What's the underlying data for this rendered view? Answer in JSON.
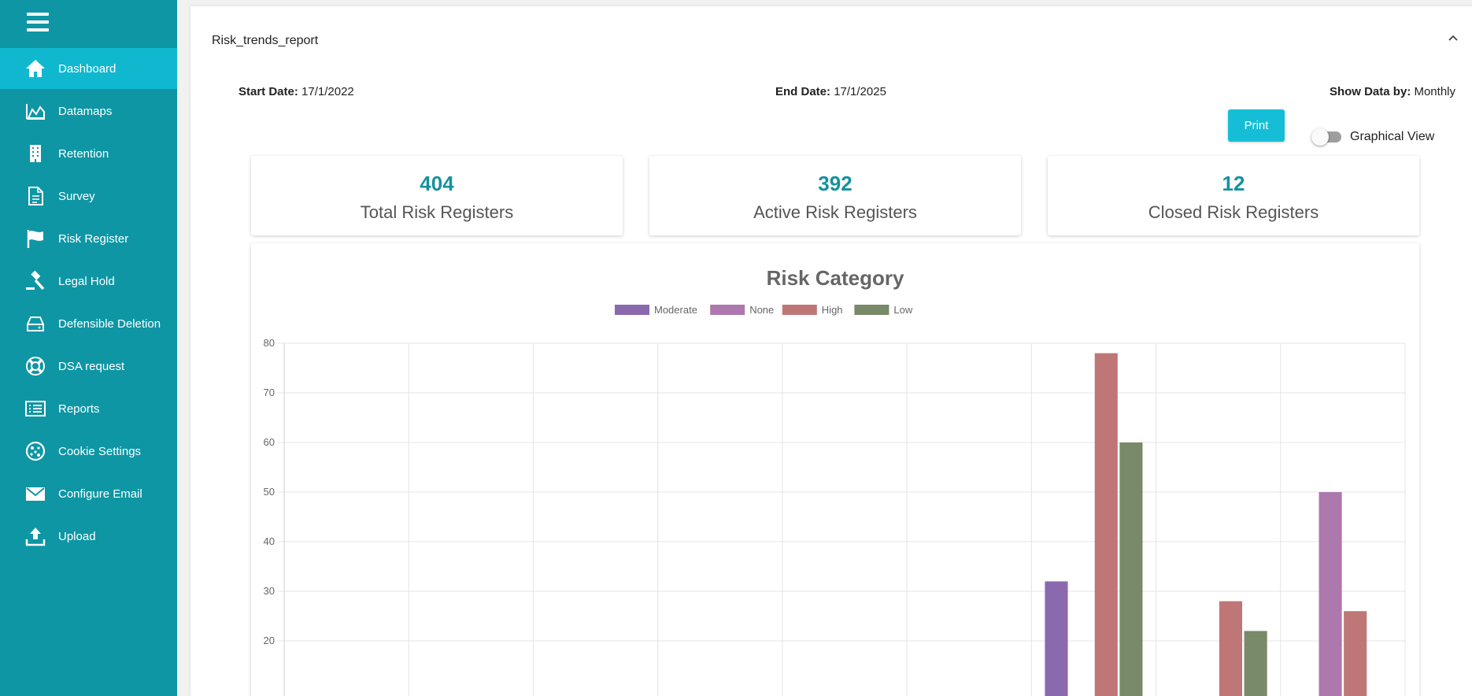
{
  "sidebar": {
    "items": [
      {
        "label": "Dashboard",
        "icon": "home-icon",
        "active": true
      },
      {
        "label": "Datamaps",
        "icon": "area-chart-icon",
        "active": false
      },
      {
        "label": "Retention",
        "icon": "building-icon",
        "active": false
      },
      {
        "label": "Survey",
        "icon": "document-icon",
        "active": false
      },
      {
        "label": "Risk Register",
        "icon": "flag-icon",
        "active": false
      },
      {
        "label": "Legal Hold",
        "icon": "gavel-icon",
        "active": false
      },
      {
        "label": "Defensible Deletion",
        "icon": "drive-icon",
        "active": false
      },
      {
        "label": "DSA request",
        "icon": "lifebuoy-icon",
        "active": false
      },
      {
        "label": "Reports",
        "icon": "list-icon",
        "active": false
      },
      {
        "label": "Cookie Settings",
        "icon": "cookie-icon",
        "active": false
      },
      {
        "label": "Configure Email",
        "icon": "envelope-icon",
        "active": false
      },
      {
        "label": "Upload",
        "icon": "upload-icon",
        "active": false
      }
    ]
  },
  "panel": {
    "title": "Risk_trends_report",
    "start_date_label": "Start Date:",
    "start_date": "17/1/2022",
    "end_date_label": "End Date:",
    "end_date": "17/1/2025",
    "show_by_label": "Show Data by:",
    "show_by": "Monthly",
    "print_label": "Print",
    "toggle_label": "Graphical View",
    "toggle_on": false
  },
  "cards": [
    {
      "value": "404",
      "label": "Total Risk Registers"
    },
    {
      "value": "392",
      "label": "Active Risk Registers"
    },
    {
      "value": "12",
      "label": "Closed Risk Registers"
    }
  ],
  "colors": {
    "sidebar": "#0e96a4",
    "sidebar_active": "#0fb8cf",
    "accent": "#15bed6",
    "card_number": "#14929f"
  },
  "chart_data": {
    "type": "bar",
    "title": "Risk Category",
    "legend_position": "top",
    "grid": true,
    "ylim": [
      0,
      80
    ],
    "y_ticks": [
      20,
      30,
      40,
      50,
      60,
      70,
      80
    ],
    "category_count": 9,
    "series": [
      {
        "name": "Moderate",
        "color": "#8b69ae",
        "values": [
          null,
          null,
          null,
          null,
          null,
          null,
          32,
          null,
          null
        ]
      },
      {
        "name": "None",
        "color": "#ad78ad",
        "values": [
          null,
          null,
          null,
          null,
          null,
          null,
          null,
          null,
          50
        ]
      },
      {
        "name": "High",
        "color": "#bf7676",
        "values": [
          null,
          null,
          null,
          null,
          null,
          null,
          78,
          28,
          26
        ]
      },
      {
        "name": "Low",
        "color": "#788a68",
        "values": [
          null,
          null,
          null,
          null,
          null,
          null,
          60,
          22,
          null
        ]
      }
    ]
  }
}
